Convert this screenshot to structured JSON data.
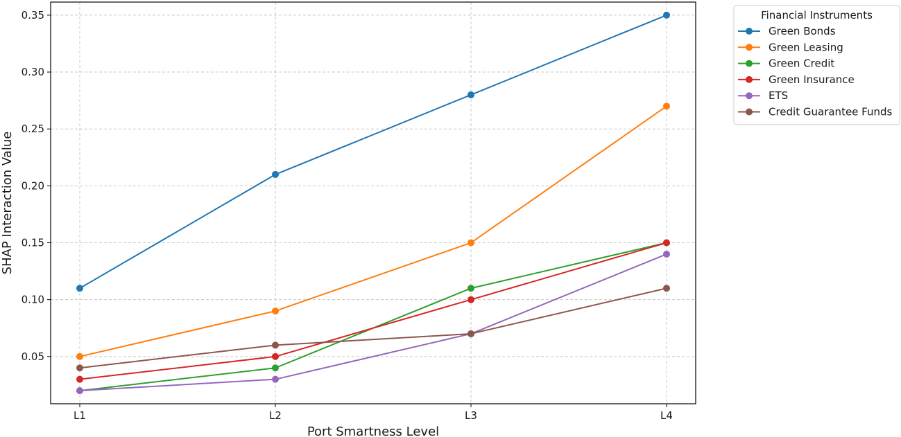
{
  "chart_data": {
    "type": "line",
    "categories": [
      "L1",
      "L2",
      "L3",
      "L4"
    ],
    "xlabel": "Port Smartness Level",
    "ylabel": "SHAP Interaction Value",
    "ylim": [
      0.0085,
      0.3615
    ],
    "yticks": [
      "0.05",
      "0.10",
      "0.15",
      "0.20",
      "0.25",
      "0.30",
      "0.35"
    ],
    "grid": true,
    "legend_title": "Financial Instruments",
    "legend_position": "outside-top-right",
    "series": [
      {
        "name": "Green Bonds",
        "color": "#1f77b4",
        "values": [
          0.11,
          0.21,
          0.28,
          0.35
        ]
      },
      {
        "name": "Green Leasing",
        "color": "#ff7f0e",
        "values": [
          0.05,
          0.09,
          0.15,
          0.27
        ]
      },
      {
        "name": "Green Credit",
        "color": "#2ca02c",
        "values": [
          0.02,
          0.04,
          0.11,
          0.15
        ]
      },
      {
        "name": "Green Insurance",
        "color": "#d62728",
        "values": [
          0.03,
          0.05,
          0.1,
          0.15
        ]
      },
      {
        "name": "ETS",
        "color": "#9467bd",
        "values": [
          0.02,
          0.03,
          0.07,
          0.14
        ]
      },
      {
        "name": "Credit Guarantee Funds",
        "color": "#8c564b",
        "values": [
          0.04,
          0.06,
          0.07,
          0.11
        ]
      }
    ]
  }
}
